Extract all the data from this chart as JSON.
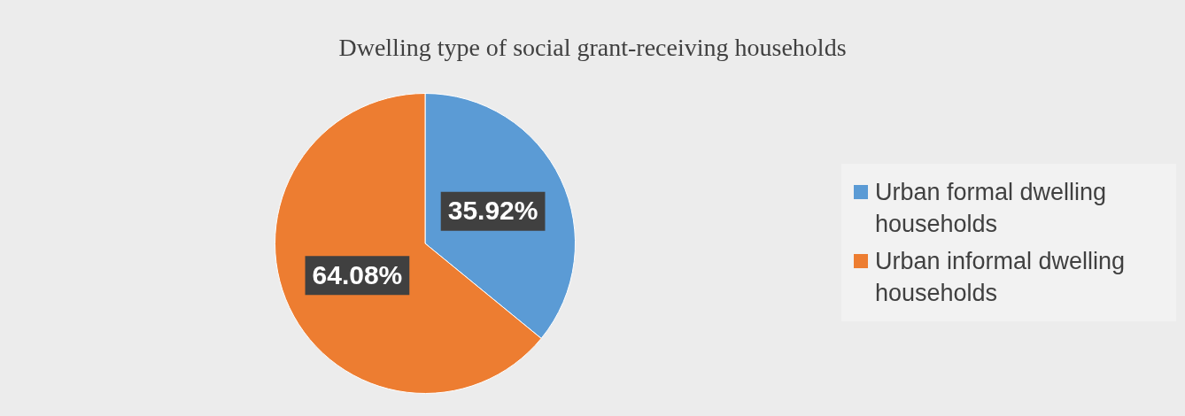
{
  "chart_data": {
    "type": "pie",
    "title": "Dwelling type of social grant-receiving households",
    "categories": [
      "Urban formal dwelling households",
      "Urban informal dwelling households"
    ],
    "values": [
      35.92,
      64.08
    ],
    "colors": [
      "#5b9bd5",
      "#ed7d31"
    ],
    "value_labels": [
      "35.92%",
      "64.08%"
    ],
    "legend": "right"
  }
}
